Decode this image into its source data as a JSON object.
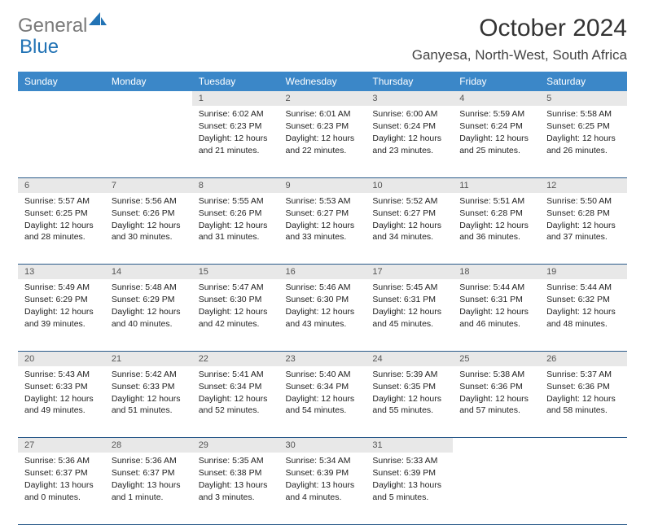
{
  "brand": {
    "part1": "General",
    "part2": "Blue"
  },
  "title": "October 2024",
  "location": "Ganyesa, North-West, South Africa",
  "colors": {
    "header_bg": "#3b87c8",
    "daynum_bg": "#e8e8e8",
    "rule": "#2a5a8a",
    "logo_gray": "#7a7a7a",
    "logo_blue": "#2273b5"
  },
  "days_of_week": [
    "Sunday",
    "Monday",
    "Tuesday",
    "Wednesday",
    "Thursday",
    "Friday",
    "Saturday"
  ],
  "weeks": [
    [
      null,
      null,
      {
        "n": "1",
        "sr": "6:02 AM",
        "ss": "6:23 PM",
        "dl": "12 hours and 21 minutes."
      },
      {
        "n": "2",
        "sr": "6:01 AM",
        "ss": "6:23 PM",
        "dl": "12 hours and 22 minutes."
      },
      {
        "n": "3",
        "sr": "6:00 AM",
        "ss": "6:24 PM",
        "dl": "12 hours and 23 minutes."
      },
      {
        "n": "4",
        "sr": "5:59 AM",
        "ss": "6:24 PM",
        "dl": "12 hours and 25 minutes."
      },
      {
        "n": "5",
        "sr": "5:58 AM",
        "ss": "6:25 PM",
        "dl": "12 hours and 26 minutes."
      }
    ],
    [
      {
        "n": "6",
        "sr": "5:57 AM",
        "ss": "6:25 PM",
        "dl": "12 hours and 28 minutes."
      },
      {
        "n": "7",
        "sr": "5:56 AM",
        "ss": "6:26 PM",
        "dl": "12 hours and 30 minutes."
      },
      {
        "n": "8",
        "sr": "5:55 AM",
        "ss": "6:26 PM",
        "dl": "12 hours and 31 minutes."
      },
      {
        "n": "9",
        "sr": "5:53 AM",
        "ss": "6:27 PM",
        "dl": "12 hours and 33 minutes."
      },
      {
        "n": "10",
        "sr": "5:52 AM",
        "ss": "6:27 PM",
        "dl": "12 hours and 34 minutes."
      },
      {
        "n": "11",
        "sr": "5:51 AM",
        "ss": "6:28 PM",
        "dl": "12 hours and 36 minutes."
      },
      {
        "n": "12",
        "sr": "5:50 AM",
        "ss": "6:28 PM",
        "dl": "12 hours and 37 minutes."
      }
    ],
    [
      {
        "n": "13",
        "sr": "5:49 AM",
        "ss": "6:29 PM",
        "dl": "12 hours and 39 minutes."
      },
      {
        "n": "14",
        "sr": "5:48 AM",
        "ss": "6:29 PM",
        "dl": "12 hours and 40 minutes."
      },
      {
        "n": "15",
        "sr": "5:47 AM",
        "ss": "6:30 PM",
        "dl": "12 hours and 42 minutes."
      },
      {
        "n": "16",
        "sr": "5:46 AM",
        "ss": "6:30 PM",
        "dl": "12 hours and 43 minutes."
      },
      {
        "n": "17",
        "sr": "5:45 AM",
        "ss": "6:31 PM",
        "dl": "12 hours and 45 minutes."
      },
      {
        "n": "18",
        "sr": "5:44 AM",
        "ss": "6:31 PM",
        "dl": "12 hours and 46 minutes."
      },
      {
        "n": "19",
        "sr": "5:44 AM",
        "ss": "6:32 PM",
        "dl": "12 hours and 48 minutes."
      }
    ],
    [
      {
        "n": "20",
        "sr": "5:43 AM",
        "ss": "6:33 PM",
        "dl": "12 hours and 49 minutes."
      },
      {
        "n": "21",
        "sr": "5:42 AM",
        "ss": "6:33 PM",
        "dl": "12 hours and 51 minutes."
      },
      {
        "n": "22",
        "sr": "5:41 AM",
        "ss": "6:34 PM",
        "dl": "12 hours and 52 minutes."
      },
      {
        "n": "23",
        "sr": "5:40 AM",
        "ss": "6:34 PM",
        "dl": "12 hours and 54 minutes."
      },
      {
        "n": "24",
        "sr": "5:39 AM",
        "ss": "6:35 PM",
        "dl": "12 hours and 55 minutes."
      },
      {
        "n": "25",
        "sr": "5:38 AM",
        "ss": "6:36 PM",
        "dl": "12 hours and 57 minutes."
      },
      {
        "n": "26",
        "sr": "5:37 AM",
        "ss": "6:36 PM",
        "dl": "12 hours and 58 minutes."
      }
    ],
    [
      {
        "n": "27",
        "sr": "5:36 AM",
        "ss": "6:37 PM",
        "dl": "13 hours and 0 minutes."
      },
      {
        "n": "28",
        "sr": "5:36 AM",
        "ss": "6:37 PM",
        "dl": "13 hours and 1 minute."
      },
      {
        "n": "29",
        "sr": "5:35 AM",
        "ss": "6:38 PM",
        "dl": "13 hours and 3 minutes."
      },
      {
        "n": "30",
        "sr": "5:34 AM",
        "ss": "6:39 PM",
        "dl": "13 hours and 4 minutes."
      },
      {
        "n": "31",
        "sr": "5:33 AM",
        "ss": "6:39 PM",
        "dl": "13 hours and 5 minutes."
      },
      null,
      null
    ]
  ],
  "labels": {
    "sunrise": "Sunrise: ",
    "sunset": "Sunset: ",
    "daylight": "Daylight: "
  }
}
